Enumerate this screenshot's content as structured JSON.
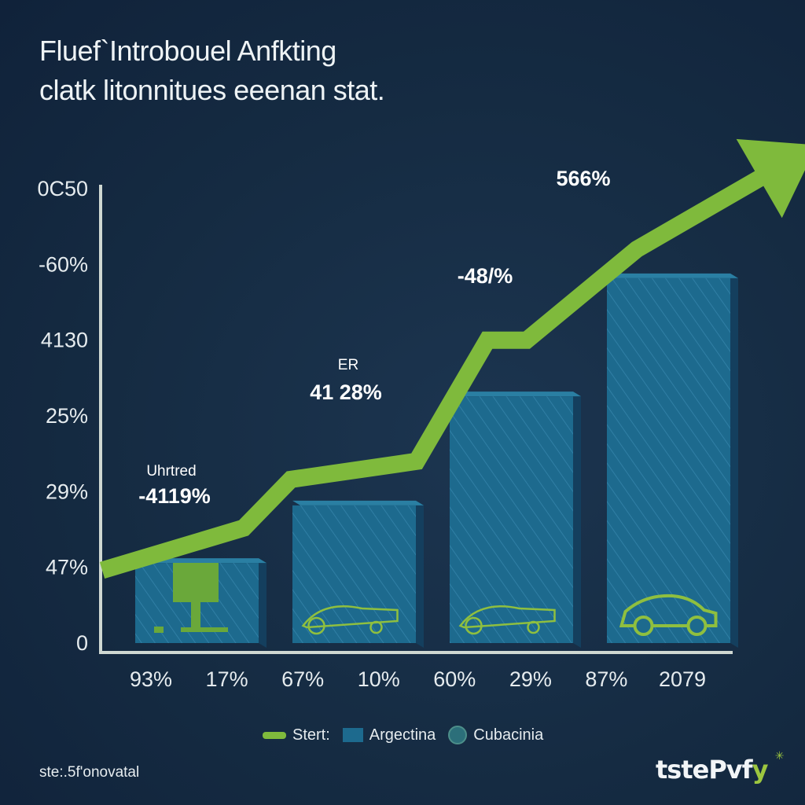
{
  "title": {
    "line1": "Fluef`Introbouel Anfkting",
    "line2": "clatk litonnitues eeenan stat."
  },
  "chart_data": {
    "type": "bar",
    "title": "Fluef`Introbouel Anfkting clatk litonnitues eeenan stat.",
    "y_tick_labels": [
      "0",
      "47%",
      "29%",
      "25%",
      "4130",
      "-60%",
      "0C50"
    ],
    "x_tick_labels": [
      "93%",
      "17%",
      "67%",
      "10%",
      "60%",
      "29%",
      "87%",
      "2079"
    ],
    "bars": [
      {
        "value": 14,
        "icon": "pedestal"
      },
      {
        "value": 23.5,
        "icon": "car-sketch"
      },
      {
        "value": 41.5,
        "icon": "car-sketch"
      },
      {
        "value": 61,
        "icon": "car"
      }
    ],
    "trend_line": {
      "name": "Stert:",
      "points": [
        [
          0,
          12
        ],
        [
          0.9,
          19
        ],
        [
          1.2,
          27
        ],
        [
          2.0,
          30
        ],
        [
          2.45,
          50
        ],
        [
          2.7,
          50
        ],
        [
          3.4,
          65
        ],
        [
          4.2,
          77
        ]
      ]
    },
    "annotations": [
      {
        "label": "Uhrtred",
        "value": "-4119%"
      },
      {
        "label": "ER",
        "value": "41 28%"
      },
      {
        "label": "",
        "value": "-48/%"
      },
      {
        "label": "",
        "value": "566%"
      }
    ],
    "legend": [
      "Stert:",
      "Argectina",
      "Cubacinia"
    ],
    "ylim": [
      0,
      75
    ]
  },
  "legend": {
    "line_label": "Stert:",
    "bar_label": "Argectina",
    "circle_label": "Cubacinia"
  },
  "source": "ste:.5f'onovatal",
  "logo": {
    "main": "tstePvf",
    "accent": "y"
  },
  "colors": {
    "background": "#152b42",
    "bar_front": "#1d6a8e",
    "bar_side": "#143f5e",
    "bar_top": "#2a7fa3",
    "trend": "#7fba3c",
    "axis": "#cfd8d2"
  }
}
